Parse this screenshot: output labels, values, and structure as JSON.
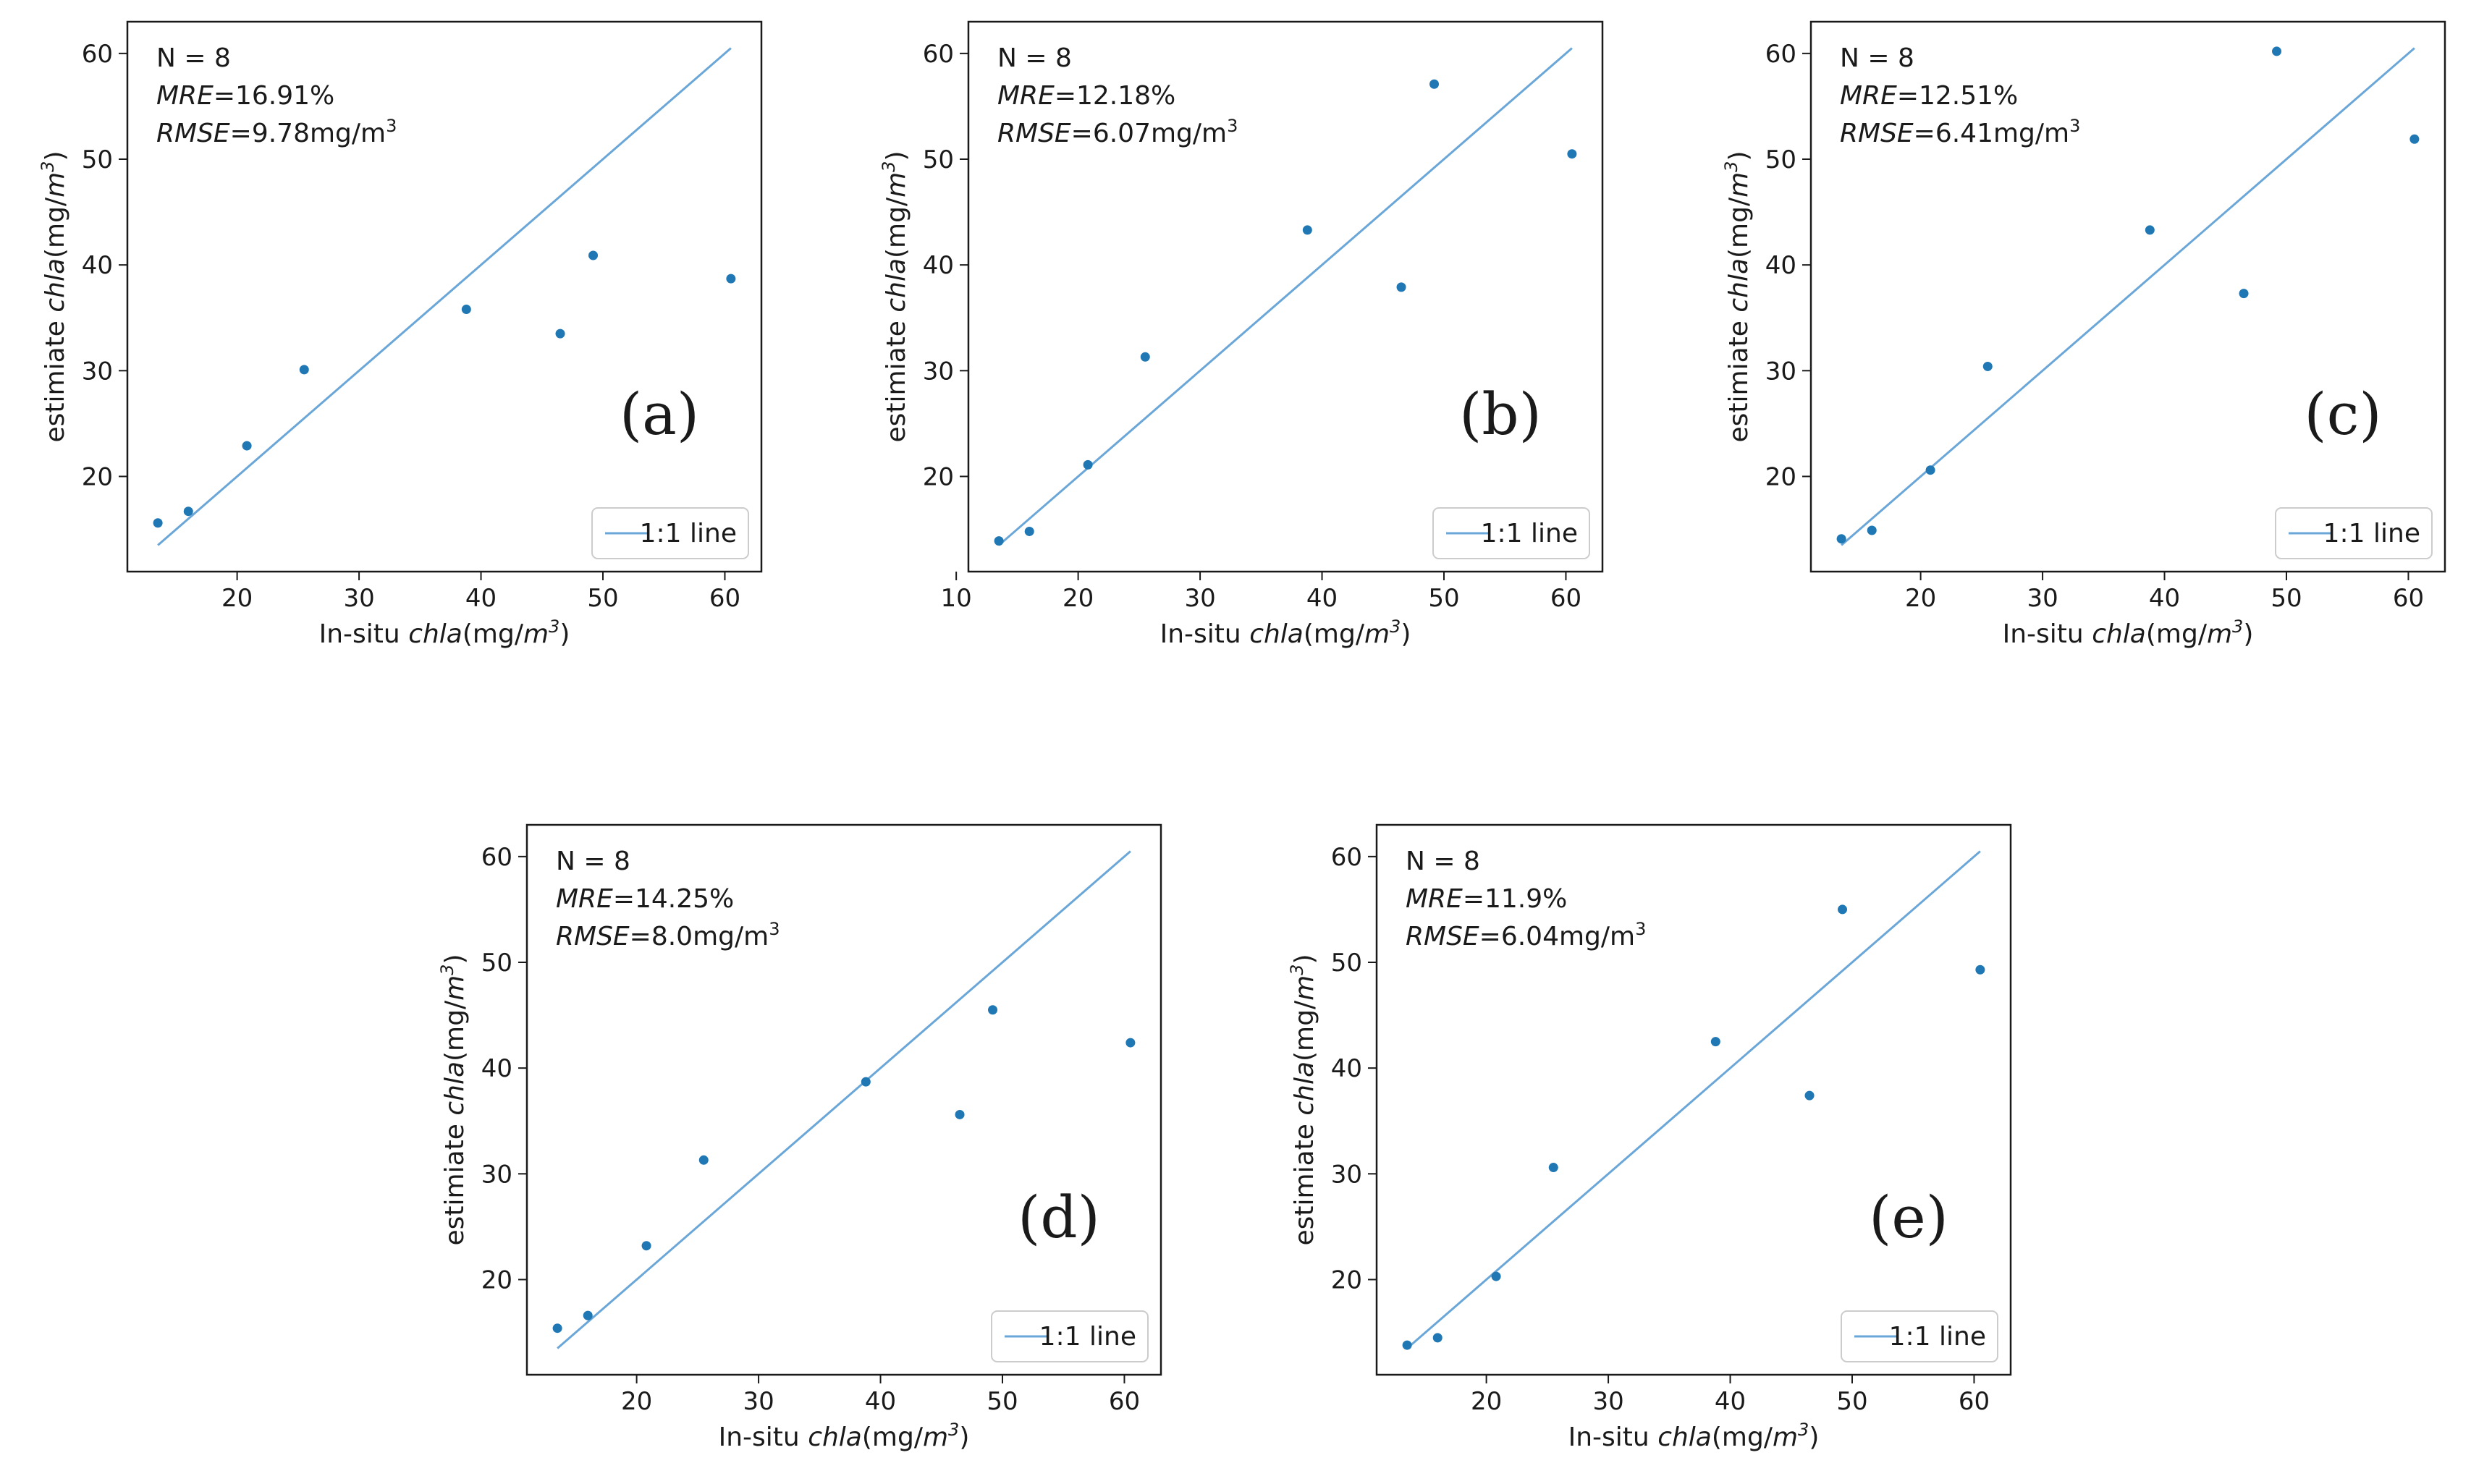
{
  "figure": {
    "x_label_prefix": "In-situ ",
    "y_label_prefix": "estimiate ",
    "chla": "chla",
    "unit_open": "(mg/",
    "unit_m": "m",
    "unit_exp": "3",
    "unit_close": ")",
    "legend_label": "1:1 line",
    "series_color": "#1f77b4",
    "line_color": "#6aa7d8"
  },
  "chart_data": [
    {
      "type": "scatter",
      "panel_label": "(a)",
      "n_text": "N = 8",
      "mre_key": "MRE",
      "mre_val": "=16.91%",
      "rmse_key": "RMSE",
      "rmse_val": "=9.78mg/m",
      "rmse_exp": "3",
      "xlim": [
        11,
        63
      ],
      "ylim": [
        11,
        63
      ],
      "x_ticks": [
        20,
        30,
        40,
        50,
        60
      ],
      "y_ticks": [
        20,
        30,
        40,
        50,
        60
      ],
      "points": [
        [
          13.5,
          15.6
        ],
        [
          16,
          16.7
        ],
        [
          20.8,
          22.9
        ],
        [
          25.5,
          30.1
        ],
        [
          38.8,
          35.8
        ],
        [
          46.5,
          33.5
        ],
        [
          49.2,
          40.9
        ],
        [
          60.5,
          38.7
        ]
      ],
      "reference_line": [
        [
          13.5,
          13.5
        ],
        [
          60.5,
          60.5
        ]
      ]
    },
    {
      "type": "scatter",
      "panel_label": "(b)",
      "n_text": "N = 8",
      "mre_key": "MRE",
      "mre_val": "=12.18%",
      "rmse_key": "RMSE",
      "rmse_val": "=6.07mg/m",
      "rmse_exp": "3",
      "xlim": [
        11,
        63
      ],
      "ylim": [
        11,
        63
      ],
      "x_ticks": [
        10,
        20,
        30,
        40,
        50,
        60
      ],
      "y_ticks": [
        20,
        30,
        40,
        50,
        60
      ],
      "points": [
        [
          13.5,
          13.9
        ],
        [
          16,
          14.8
        ],
        [
          20.8,
          21.1
        ],
        [
          25.5,
          31.3
        ],
        [
          38.8,
          43.3
        ],
        [
          46.5,
          37.9
        ],
        [
          49.2,
          57.1
        ],
        [
          60.5,
          50.5
        ]
      ],
      "reference_line": [
        [
          13.5,
          13.5
        ],
        [
          60.5,
          60.5
        ]
      ]
    },
    {
      "type": "scatter",
      "panel_label": "(c)",
      "n_text": "N = 8",
      "mre_key": "MRE",
      "mre_val": "=12.51%",
      "rmse_key": "RMSE",
      "rmse_val": "=6.41mg/m",
      "rmse_exp": "3",
      "xlim": [
        11,
        63
      ],
      "ylim": [
        11,
        63
      ],
      "x_ticks": [
        20,
        30,
        40,
        50,
        60
      ],
      "y_ticks": [
        20,
        30,
        40,
        50,
        60
      ],
      "points": [
        [
          13.5,
          14.1
        ],
        [
          16,
          14.9
        ],
        [
          20.8,
          20.6
        ],
        [
          25.5,
          30.4
        ],
        [
          38.8,
          43.3
        ],
        [
          46.5,
          37.3
        ],
        [
          49.2,
          60.2
        ],
        [
          60.5,
          51.9
        ]
      ],
      "reference_line": [
        [
          13.5,
          13.5
        ],
        [
          60.5,
          60.5
        ]
      ]
    },
    {
      "type": "scatter",
      "panel_label": "(d)",
      "n_text": "N = 8",
      "mre_key": "MRE",
      "mre_val": "=14.25%",
      "rmse_key": "RMSE",
      "rmse_val": "=8.0mg/m",
      "rmse_exp": "3",
      "xlim": [
        11,
        63
      ],
      "ylim": [
        11,
        63
      ],
      "x_ticks": [
        20,
        30,
        40,
        50,
        60
      ],
      "y_ticks": [
        20,
        30,
        40,
        50,
        60
      ],
      "points": [
        [
          13.5,
          15.4
        ],
        [
          16,
          16.6
        ],
        [
          20.8,
          23.2
        ],
        [
          25.5,
          31.3
        ],
        [
          38.8,
          38.7
        ],
        [
          46.5,
          35.6
        ],
        [
          49.2,
          45.5
        ],
        [
          60.5,
          42.4
        ]
      ],
      "reference_line": [
        [
          13.5,
          13.5
        ],
        [
          60.5,
          60.5
        ]
      ]
    },
    {
      "type": "scatter",
      "panel_label": "(e)",
      "n_text": "N = 8",
      "mre_key": "MRE",
      "mre_val": "=11.9%",
      "rmse_key": "RMSE",
      "rmse_val": "=6.04mg/m",
      "rmse_exp": "3",
      "xlim": [
        11,
        63
      ],
      "ylim": [
        11,
        63
      ],
      "x_ticks": [
        20,
        30,
        40,
        50,
        60
      ],
      "y_ticks": [
        20,
        30,
        40,
        50,
        60
      ],
      "points": [
        [
          13.5,
          13.8
        ],
        [
          16,
          14.5
        ],
        [
          20.8,
          20.3
        ],
        [
          25.5,
          30.6
        ],
        [
          38.8,
          42.5
        ],
        [
          46.5,
          37.4
        ],
        [
          49.2,
          55.0
        ],
        [
          60.5,
          49.3
        ]
      ],
      "reference_line": [
        [
          13.5,
          13.5
        ],
        [
          60.5,
          60.5
        ]
      ]
    }
  ]
}
